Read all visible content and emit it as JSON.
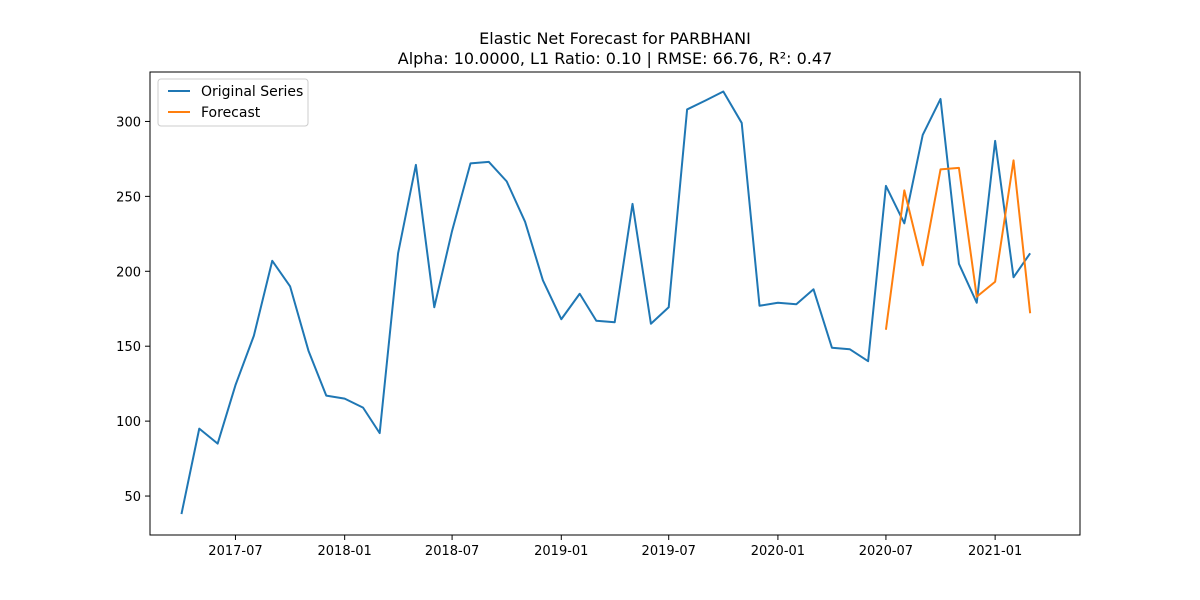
{
  "chart_data": {
    "type": "line",
    "title": "Elastic Net Forecast for PARBHANI",
    "subtitle": "Alpha: 10.0000, L1 Ratio: 0.10 | RMSE: 66.76, R²: 0.47",
    "xlabel": "",
    "ylabel": "",
    "ylim": [
      24,
      333
    ],
    "xlim": [
      "2017-02-07",
      "2021-05-24"
    ],
    "x_ticks": [
      "2017-07-01",
      "2018-01-01",
      "2018-07-01",
      "2019-01-01",
      "2019-07-01",
      "2020-01-01",
      "2020-07-01",
      "2021-01-01"
    ],
    "x_tick_labels": [
      "2017-07",
      "2018-01",
      "2018-07",
      "2019-01",
      "2019-07",
      "2020-01",
      "2020-07",
      "2021-01"
    ],
    "y_ticks": [
      50,
      100,
      150,
      200,
      250,
      300
    ],
    "y_tick_labels": [
      "50",
      "100",
      "150",
      "200",
      "250",
      "300"
    ],
    "grid": false,
    "legend_position": "top-left",
    "series": [
      {
        "name": "Original Series",
        "color": "#1f77b4",
        "x": [
          "2017-04-01",
          "2017-05-01",
          "2017-06-01",
          "2017-07-01",
          "2017-08-01",
          "2017-09-01",
          "2017-10-01",
          "2017-11-01",
          "2017-12-01",
          "2018-01-01",
          "2018-02-01",
          "2018-03-01",
          "2018-04-01",
          "2018-05-01",
          "2018-06-01",
          "2018-07-01",
          "2018-08-01",
          "2018-09-01",
          "2018-10-01",
          "2018-11-01",
          "2018-12-01",
          "2019-01-01",
          "2019-02-01",
          "2019-03-01",
          "2019-04-01",
          "2019-05-01",
          "2019-06-01",
          "2019-07-01",
          "2019-08-01",
          "2019-09-01",
          "2019-10-01",
          "2019-11-01",
          "2019-12-01",
          "2020-01-01",
          "2020-02-01",
          "2020-03-01",
          "2020-04-01",
          "2020-05-01",
          "2020-06-01",
          "2020-07-01",
          "2020-08-01",
          "2020-09-01",
          "2020-10-01",
          "2020-11-01",
          "2020-12-01",
          "2021-01-01",
          "2021-02-01",
          "2021-03-01"
        ],
        "values": [
          38,
          95,
          85,
          124,
          157,
          207,
          190,
          147,
          117,
          115,
          109,
          92,
          212,
          271,
          176,
          227,
          272,
          273,
          260,
          233,
          194,
          168,
          185,
          167,
          166,
          245,
          165,
          176,
          308,
          314,
          320,
          299,
          177,
          179,
          178,
          188,
          149,
          148,
          140,
          257,
          232,
          291,
          315,
          205,
          179,
          287,
          196,
          212
        ]
      },
      {
        "name": "Forecast",
        "color": "#ff7f0e",
        "x": [
          "2020-07-01",
          "2020-08-01",
          "2020-09-01",
          "2020-10-01",
          "2020-11-01",
          "2020-12-01",
          "2021-01-01",
          "2021-02-01",
          "2021-03-01"
        ],
        "values": [
          161,
          254,
          204,
          268,
          269,
          183,
          193,
          274,
          172
        ]
      }
    ]
  }
}
